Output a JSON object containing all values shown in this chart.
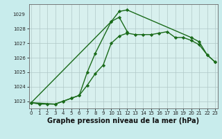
{
  "xlabel": "Graphe pression niveau de la mer (hPa)",
  "hours": [
    0,
    1,
    2,
    3,
    4,
    5,
    6,
    7,
    8,
    9,
    10,
    11,
    12,
    13,
    14,
    15,
    16,
    17,
    18,
    19,
    20,
    21,
    22,
    23
  ],
  "line1": [
    1022.9,
    1022.8,
    1022.8,
    1022.8,
    1023.0,
    1023.2,
    1023.4,
    1024.1,
    1024.9,
    1025.5,
    1027.0,
    1027.5,
    1027.7,
    1027.6,
    1027.6,
    1027.6,
    1027.7,
    1027.8,
    1027.4,
    1027.4,
    1027.2,
    1026.9,
    1026.2,
    1025.7
  ],
  "line2_x": [
    0,
    3,
    4,
    5,
    6,
    7,
    8,
    10,
    11,
    12
  ],
  "line2_y": [
    1022.9,
    1022.8,
    1023.0,
    1023.2,
    1023.4,
    1025.0,
    1026.3,
    1028.5,
    1028.8,
    1027.8
  ],
  "line3_x": [
    0,
    10,
    11,
    12,
    20,
    21,
    22,
    23
  ],
  "line3_y": [
    1022.9,
    1028.5,
    1029.2,
    1029.3,
    1027.4,
    1027.1,
    1026.2,
    1025.7
  ],
  "ylim": [
    1022.5,
    1029.7
  ],
  "ytop_label": "1029",
  "yticks": [
    1023,
    1024,
    1025,
    1026,
    1027,
    1028
  ],
  "xticks": [
    0,
    1,
    2,
    3,
    4,
    5,
    6,
    7,
    8,
    9,
    10,
    11,
    12,
    13,
    14,
    15,
    16,
    17,
    18,
    19,
    20,
    21,
    22,
    23
  ],
  "bg_color": "#c8ecec",
  "plot_bg_color": "#d8f0ee",
  "line_color": "#1a6b1a",
  "marker": "D",
  "marker_size": 2.2,
  "line_width": 1.0,
  "grid_color": "#b0c8c8",
  "tick_label_fontsize": 5.0,
  "xlabel_fontsize": 7.0
}
